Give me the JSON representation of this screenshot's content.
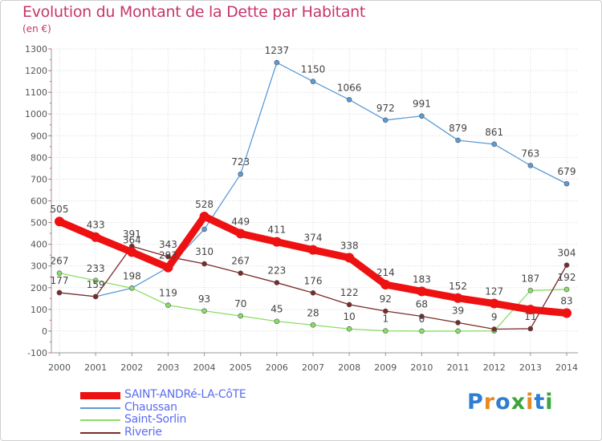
{
  "title": "Evolution du Montant de la Dette par Habitant",
  "subtitle": "(en €)",
  "logo": {
    "text": "Proxiti",
    "colors": [
      "#2f7fd0",
      "#e88a1f",
      "#2f7fd0",
      "#3aa53a",
      "#e88a1f",
      "#2f7fd0",
      "#3aa53a"
    ]
  },
  "chart_data": {
    "type": "line",
    "x": [
      "2000",
      "2001",
      "2002",
      "2003",
      "2004",
      "2005",
      "2006",
      "2007",
      "2008",
      "2009",
      "2010",
      "2011",
      "2012",
      "2013",
      "2014"
    ],
    "ylim": [
      -100,
      1300
    ],
    "yticks": [
      "-100",
      "0",
      "100",
      "200",
      "300",
      "400",
      "500",
      "600",
      "700",
      "800",
      "900",
      "1000",
      "1100",
      "1200",
      "1300"
    ],
    "grid": true,
    "legend_position": "bottom-left",
    "series": [
      {
        "name": "SAINT-ANDRé-LA-CôTE",
        "color": "#ee1111",
        "values": [
          505,
          433,
          364,
          293,
          528,
          449,
          411,
          374,
          338,
          214,
          183,
          152,
          127,
          99,
          83
        ],
        "labels": [
          "505",
          "433",
          "364",
          "",
          "528",
          "449",
          "411",
          "374",
          "338",
          "214",
          "183",
          "152",
          "127",
          "",
          "83"
        ]
      },
      {
        "name": "Chaussan",
        "color": "#5b9bd5",
        "values": [
          177,
          159,
          198,
          293,
          469,
          723,
          1237,
          1150,
          1066,
          972,
          991,
          879,
          861,
          763,
          679
        ],
        "labels": [
          "",
          "",
          "",
          "293",
          "",
          "723",
          "1237",
          "1150",
          "1066",
          "972",
          "991",
          "879",
          "861",
          "763",
          "679"
        ]
      },
      {
        "name": "Saint-Sorlin",
        "color": "#88dd66",
        "values": [
          267,
          233,
          198,
          119,
          93,
          70,
          45,
          28,
          10,
          1,
          0,
          0,
          1,
          187,
          192
        ],
        "labels": [
          "267",
          "233",
          "198",
          "119",
          "93",
          "70",
          "45",
          "28",
          "10",
          "1",
          "0",
          "",
          "",
          "187",
          "192"
        ]
      },
      {
        "name": "Riverie",
        "color": "#7a2a2a",
        "values": [
          177,
          159,
          391,
          343,
          310,
          267,
          223,
          176,
          122,
          92,
          68,
          39,
          9,
          11,
          304
        ],
        "labels": [
          "177",
          "159",
          "391",
          "343",
          "310",
          "267",
          "223",
          "176",
          "122",
          "92",
          "68",
          "39",
          "9",
          "11",
          "304"
        ]
      }
    ]
  }
}
